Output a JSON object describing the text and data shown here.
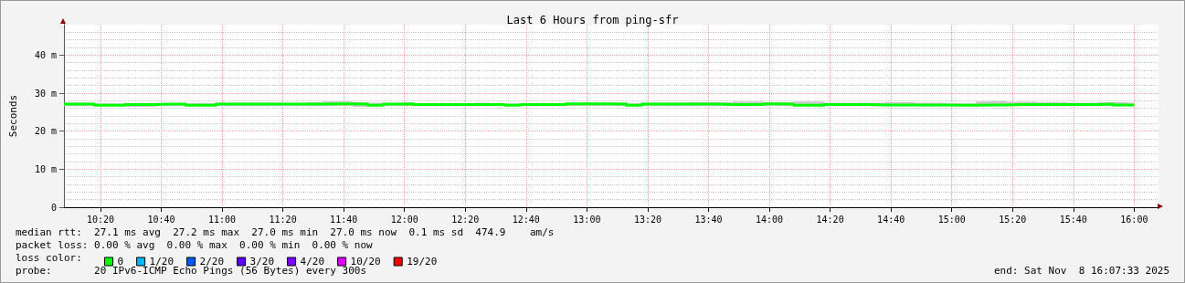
{
  "chart_data": {
    "type": "step",
    "title": "Last 6 Hours from ping-sfr",
    "ylabel": "Seconds",
    "legend_title": "loss color:",
    "x": [
      "2025-11-08T10:08",
      "2025-11-08T10:13",
      "2025-11-08T10:18",
      "2025-11-08T10:23",
      "2025-11-08T10:28",
      "2025-11-08T10:33",
      "2025-11-08T10:38",
      "2025-11-08T10:43",
      "2025-11-08T10:48",
      "2025-11-08T10:53",
      "2025-11-08T10:58",
      "2025-11-08T11:03",
      "2025-11-08T11:08",
      "2025-11-08T11:13",
      "2025-11-08T11:18",
      "2025-11-08T11:23",
      "2025-11-08T11:28",
      "2025-11-08T11:33",
      "2025-11-08T11:38",
      "2025-11-08T11:43",
      "2025-11-08T11:48",
      "2025-11-08T11:53",
      "2025-11-08T11:58",
      "2025-11-08T12:03",
      "2025-11-08T12:08",
      "2025-11-08T12:13",
      "2025-11-08T12:18",
      "2025-11-08T12:23",
      "2025-11-08T12:28",
      "2025-11-08T12:33",
      "2025-11-08T12:38",
      "2025-11-08T12:43",
      "2025-11-08T12:48",
      "2025-11-08T12:53",
      "2025-11-08T12:58",
      "2025-11-08T13:03",
      "2025-11-08T13:08",
      "2025-11-08T13:13",
      "2025-11-08T13:18",
      "2025-11-08T13:23",
      "2025-11-08T13:28",
      "2025-11-08T13:33",
      "2025-11-08T13:38",
      "2025-11-08T13:43",
      "2025-11-08T13:48",
      "2025-11-08T13:53",
      "2025-11-08T13:58",
      "2025-11-08T14:03",
      "2025-11-08T14:08",
      "2025-11-08T14:13",
      "2025-11-08T14:18",
      "2025-11-08T14:23",
      "2025-11-08T14:28",
      "2025-11-08T14:33",
      "2025-11-08T14:38",
      "2025-11-08T14:43",
      "2025-11-08T14:48",
      "2025-11-08T14:53",
      "2025-11-08T14:58",
      "2025-11-08T15:03",
      "2025-11-08T15:08",
      "2025-11-08T15:13",
      "2025-11-08T15:18",
      "2025-11-08T15:23",
      "2025-11-08T15:28",
      "2025-11-08T15:33",
      "2025-11-08T15:38",
      "2025-11-08T15:43",
      "2025-11-08T15:48",
      "2025-11-08T15:53",
      "2025-11-08T15:58",
      "2025-11-08T16:00"
    ],
    "series": [
      {
        "name": "0",
        "color": "#00ff00",
        "values": [
          27.1,
          27.1,
          26.8,
          26.8,
          27.0,
          27.0,
          27.1,
          27.1,
          26.8,
          26.8,
          27.1,
          27.1,
          27.1,
          27.1,
          27.1,
          27.1,
          27.1,
          27.2,
          27.2,
          27.1,
          26.8,
          27.1,
          27.2,
          27.0,
          27.0,
          27.0,
          27.0,
          27.0,
          27.0,
          26.8,
          27.0,
          27.0,
          27.0,
          27.2,
          27.2,
          27.2,
          27.1,
          26.8,
          27.1,
          27.1,
          27.1,
          27.1,
          27.1,
          27.0,
          27.0,
          27.0,
          27.2,
          27.1,
          26.8,
          26.8,
          27.0,
          27.0,
          27.0,
          26.9,
          26.9,
          26.9,
          26.9,
          26.9,
          26.8,
          26.8,
          26.9,
          26.9,
          27.0,
          27.0,
          27.0,
          27.0,
          27.0,
          27.0,
          27.1,
          26.9,
          26.8,
          26.8
        ],
        "lower": [
          26.6,
          26.6,
          26.6,
          26.6,
          26.4,
          26.4,
          26.6,
          26.6,
          26.6,
          26.6,
          26.6,
          26.6,
          26.6,
          26.6,
          26.6,
          26.6,
          26.6,
          26.6,
          26.6,
          26.4,
          26.6,
          26.6,
          26.6,
          26.6,
          26.6,
          26.6,
          26.6,
          26.6,
          26.6,
          26.6,
          26.6,
          26.6,
          26.6,
          26.6,
          26.6,
          26.6,
          26.6,
          26.6,
          26.6,
          26.6,
          26.6,
          26.6,
          26.6,
          26.6,
          26.6,
          26.6,
          26.6,
          26.6,
          26.6,
          26.6,
          26.6,
          26.6,
          26.6,
          26.6,
          26.6,
          26.6,
          26.6,
          26.6,
          26.6,
          26.6,
          26.6,
          26.6,
          26.6,
          26.6,
          26.6,
          26.6,
          26.6,
          26.6,
          26.6,
          26.6,
          26.6,
          26.6
        ],
        "upper": [
          27.5,
          27.5,
          27.3,
          27.3,
          27.3,
          27.3,
          27.4,
          27.4,
          27.4,
          27.4,
          27.5,
          27.5,
          27.5,
          27.5,
          27.4,
          27.4,
          27.6,
          27.8,
          27.8,
          27.6,
          27.5,
          27.4,
          27.5,
          27.3,
          27.3,
          27.3,
          27.3,
          27.5,
          27.3,
          27.3,
          27.3,
          27.3,
          27.3,
          27.4,
          27.5,
          27.5,
          27.5,
          27.3,
          27.5,
          27.5,
          27.5,
          27.6,
          27.6,
          27.6,
          27.8,
          27.8,
          27.6,
          27.6,
          27.8,
          27.8,
          27.5,
          27.5,
          27.5,
          27.5,
          27.6,
          27.6,
          27.5,
          27.5,
          27.3,
          27.3,
          27.8,
          27.9,
          27.7,
          27.7,
          27.6,
          27.6,
          27.5,
          27.5,
          27.6,
          27.6,
          27.5,
          27.5
        ]
      },
      {
        "name": "1/20",
        "color": "#00b8ff",
        "values": [
          null,
          null,
          null,
          null,
          null,
          null,
          null,
          null,
          null,
          null,
          null,
          null,
          null,
          null,
          null,
          null,
          null,
          null,
          null,
          null,
          null,
          null,
          null,
          null,
          null,
          null,
          null,
          null,
          null,
          null,
          null,
          null,
          null,
          null,
          null,
          null,
          null,
          null,
          null,
          null,
          null,
          null,
          null,
          null,
          null,
          null,
          null,
          null,
          null,
          null,
          null,
          null,
          null,
          null,
          null,
          null,
          null,
          null,
          null,
          null,
          null,
          null,
          null,
          null,
          null,
          null,
          null,
          null,
          null,
          null,
          null,
          null
        ]
      },
      {
        "name": "2/20",
        "color": "#0059ff",
        "values": [
          null,
          null,
          null,
          null,
          null,
          null,
          null,
          null,
          null,
          null,
          null,
          null,
          null,
          null,
          null,
          null,
          null,
          null,
          null,
          null,
          null,
          null,
          null,
          null,
          null,
          null,
          null,
          null,
          null,
          null,
          null,
          null,
          null,
          null,
          null,
          null,
          null,
          null,
          null,
          null,
          null,
          null,
          null,
          null,
          null,
          null,
          null,
          null,
          null,
          null,
          null,
          null,
          null,
          null,
          null,
          null,
          null,
          null,
          null,
          null,
          null,
          null,
          null,
          null,
          null,
          null,
          null,
          null,
          null,
          null,
          null,
          null
        ]
      },
      {
        "name": "3/20",
        "color": "#5e00ff",
        "values": [
          null,
          null,
          null,
          null,
          null,
          null,
          null,
          null,
          null,
          null,
          null,
          null,
          null,
          null,
          null,
          null,
          null,
          null,
          null,
          null,
          null,
          null,
          null,
          null,
          null,
          null,
          null,
          null,
          null,
          null,
          null,
          null,
          null,
          null,
          null,
          null,
          null,
          null,
          null,
          null,
          null,
          null,
          null,
          null,
          null,
          null,
          null,
          null,
          null,
          null,
          null,
          null,
          null,
          null,
          null,
          null,
          null,
          null,
          null,
          null,
          null,
          null,
          null,
          null,
          null,
          null,
          null,
          null,
          null,
          null,
          null,
          null
        ]
      },
      {
        "name": "4/20",
        "color": "#7e00ff",
        "values": [
          null,
          null,
          null,
          null,
          null,
          null,
          null,
          null,
          null,
          null,
          null,
          null,
          null,
          null,
          null,
          null,
          null,
          null,
          null,
          null,
          null,
          null,
          null,
          null,
          null,
          null,
          null,
          null,
          null,
          null,
          null,
          null,
          null,
          null,
          null,
          null,
          null,
          null,
          null,
          null,
          null,
          null,
          null,
          null,
          null,
          null,
          null,
          null,
          null,
          null,
          null,
          null,
          null,
          null,
          null,
          null,
          null,
          null,
          null,
          null,
          null,
          null,
          null,
          null,
          null,
          null,
          null,
          null,
          null,
          null,
          null,
          null
        ]
      },
      {
        "name": "10/20",
        "color": "#dd00ff",
        "values": [
          null,
          null,
          null,
          null,
          null,
          null,
          null,
          null,
          null,
          null,
          null,
          null,
          null,
          null,
          null,
          null,
          null,
          null,
          null,
          null,
          null,
          null,
          null,
          null,
          null,
          null,
          null,
          null,
          null,
          null,
          null,
          null,
          null,
          null,
          null,
          null,
          null,
          null,
          null,
          null,
          null,
          null,
          null,
          null,
          null,
          null,
          null,
          null,
          null,
          null,
          null,
          null,
          null,
          null,
          null,
          null,
          null,
          null,
          null,
          null,
          null,
          null,
          null,
          null,
          null,
          null,
          null,
          null,
          null,
          null,
          null,
          null
        ]
      },
      {
        "name": "19/20",
        "color": "#ff0000",
        "values": [
          null,
          null,
          null,
          null,
          null,
          null,
          null,
          null,
          null,
          null,
          null,
          null,
          null,
          null,
          null,
          null,
          null,
          null,
          null,
          null,
          null,
          null,
          null,
          null,
          null,
          null,
          null,
          null,
          null,
          null,
          null,
          null,
          null,
          null,
          null,
          null,
          null,
          null,
          null,
          null,
          null,
          null,
          null,
          null,
          null,
          null,
          null,
          null,
          null,
          null,
          null,
          null,
          null,
          null,
          null,
          null,
          null,
          null,
          null,
          null,
          null,
          null,
          null,
          null,
          null,
          null,
          null,
          null,
          null,
          null,
          null,
          null
        ]
      }
    ],
    "xlim": [
      "2025-11-08T10:08",
      "2025-11-08T16:08"
    ],
    "xticks": [
      {
        "value": "2025-11-08T10:20",
        "label": "10:20"
      },
      {
        "value": "2025-11-08T10:40",
        "label": "10:40"
      },
      {
        "value": "2025-11-08T11:00",
        "label": "11:00"
      },
      {
        "value": "2025-11-08T11:20",
        "label": "11:20"
      },
      {
        "value": "2025-11-08T11:40",
        "label": "11:40"
      },
      {
        "value": "2025-11-08T12:00",
        "label": "12:00"
      },
      {
        "value": "2025-11-08T12:20",
        "label": "12:20"
      },
      {
        "value": "2025-11-08T12:40",
        "label": "12:40"
      },
      {
        "value": "2025-11-08T13:00",
        "label": "13:00"
      },
      {
        "value": "2025-11-08T13:20",
        "label": "13:20"
      },
      {
        "value": "2025-11-08T13:40",
        "label": "13:40"
      },
      {
        "value": "2025-11-08T14:00",
        "label": "14:00"
      },
      {
        "value": "2025-11-08T14:20",
        "label": "14:20"
      },
      {
        "value": "2025-11-08T14:40",
        "label": "14:40"
      },
      {
        "value": "2025-11-08T15:00",
        "label": "15:00"
      },
      {
        "value": "2025-11-08T15:20",
        "label": "15:20"
      },
      {
        "value": "2025-11-08T15:40",
        "label": "15:40"
      },
      {
        "value": "2025-11-08T16:00",
        "label": "16:00"
      }
    ],
    "ylim": [
      0,
      48
    ],
    "yticks": [
      0,
      {
        "value": 10,
        "label": "10 m"
      },
      {
        "value": 20,
        "label": "20 m"
      },
      {
        "value": 30,
        "label": "30 m"
      },
      {
        "value": 40,
        "label": "40 m"
      }
    ],
    "grid": true,
    "legend": "bottom",
    "marker": "none",
    "line_style": "solid",
    "annotations": [
      "median rtt:  27.1 ms avg  27.2 ms max  27.0 ms min  27.0 ms now  0.1 ms sd  474.9    am/s",
      "packet loss: 0.00 % avg  0.00 % max  0.00 % min  0.00 % now",
      "probe:       20 IPv6-ICMP Echo Pings (56 Bytes) every 300s",
      "end: Sat Nov  8 16:07:33 2025"
    ]
  }
}
